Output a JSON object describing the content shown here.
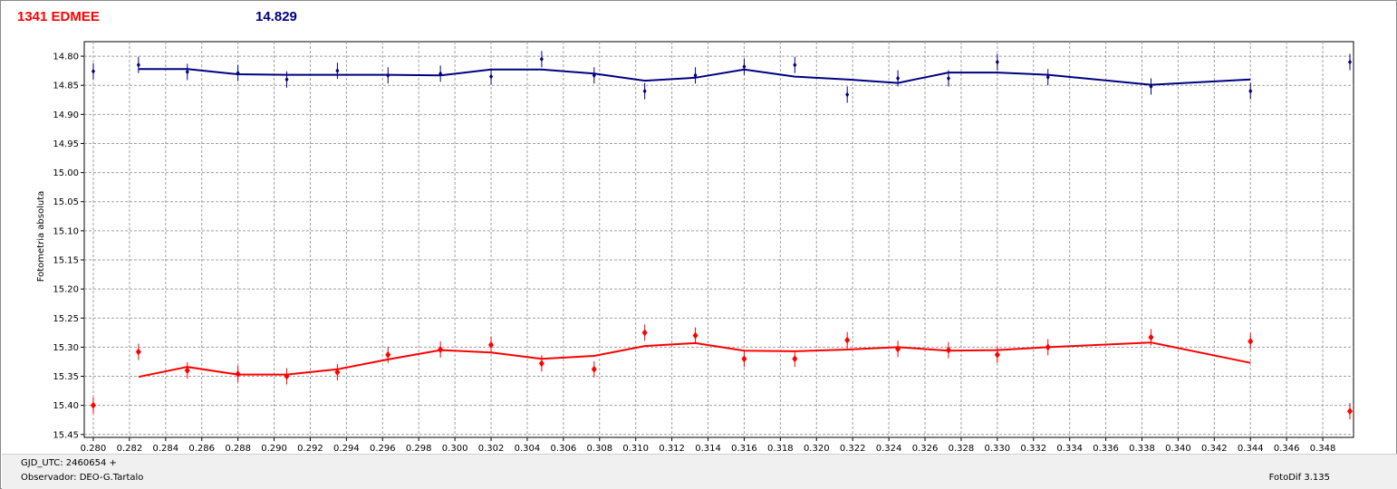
{
  "header": {
    "object_name": "1341 EDMEE",
    "mean_magnitude": "14.829"
  },
  "footer": {
    "gjd_label": "GJD_UTC: 2460654 +",
    "observer_label": "Observador: DEO-G.Tartalo",
    "software_label": "FotoDif 3.135"
  },
  "colors": {
    "target": "#ff0000",
    "comparison": "#000080",
    "grid": "#a0a0a0"
  },
  "chart_data": {
    "type": "scatter",
    "ylabel": "Fotometria absoluta",
    "xlabel": "",
    "xlim": [
      0.2795,
      0.3497
    ],
    "ylim": [
      14.775,
      15.455
    ],
    "y_inverted": true,
    "grid": true,
    "x_ticks": [
      "0.280",
      "0.282",
      "0.284",
      "0.286",
      "0.288",
      "0.290",
      "0.292",
      "0.294",
      "0.296",
      "0.298",
      "0.300",
      "0.302",
      "0.304",
      "0.306",
      "0.308",
      "0.310",
      "0.312",
      "0.314",
      "0.316",
      "0.318",
      "0.320",
      "0.322",
      "0.324",
      "0.326",
      "0.328",
      "0.330",
      "0.332",
      "0.334",
      "0.336",
      "0.338",
      "0.340",
      "0.342",
      "0.344",
      "0.346",
      "0.348"
    ],
    "y_ticks": [
      "14.80",
      "14.85",
      "14.90",
      "14.95",
      "15.00",
      "15.05",
      "15.10",
      "15.15",
      "15.20",
      "15.25",
      "15.30",
      "15.35",
      "15.40",
      "15.45"
    ],
    "series": [
      {
        "color": "#000080",
        "points": [
          {
            "x": 0.28,
            "y": 14.826
          },
          {
            "x": 0.2825,
            "y": 14.815
          },
          {
            "x": 0.2852,
            "y": 14.827
          },
          {
            "x": 0.288,
            "y": 14.829
          },
          {
            "x": 0.2907,
            "y": 14.84
          },
          {
            "x": 0.2935,
            "y": 14.825
          },
          {
            "x": 0.2963,
            "y": 14.833
          },
          {
            "x": 0.2992,
            "y": 14.83
          },
          {
            "x": 0.302,
            "y": 14.835
          },
          {
            "x": 0.3048,
            "y": 14.805
          },
          {
            "x": 0.3077,
            "y": 14.833
          },
          {
            "x": 0.3105,
            "y": 14.86
          },
          {
            "x": 0.3133,
            "y": 14.833
          },
          {
            "x": 0.316,
            "y": 14.818
          },
          {
            "x": 0.3188,
            "y": 14.815
          },
          {
            "x": 0.3217,
            "y": 14.866
          },
          {
            "x": 0.3245,
            "y": 14.838
          },
          {
            "x": 0.3273,
            "y": 14.838
          },
          {
            "x": 0.33,
            "y": 14.81
          },
          {
            "x": 0.3328,
            "y": 14.836
          },
          {
            "x": 0.3385,
            "y": 14.852
          },
          {
            "x": 0.344,
            "y": 14.86
          },
          {
            "x": 0.3495,
            "y": 14.81
          }
        ],
        "trend": [
          {
            "x": 0.2825,
            "y": 14.822
          },
          {
            "x": 0.2852,
            "y": 14.822
          },
          {
            "x": 0.288,
            "y": 14.831
          },
          {
            "x": 0.2907,
            "y": 14.832
          },
          {
            "x": 0.2935,
            "y": 14.832
          },
          {
            "x": 0.2963,
            "y": 14.832
          },
          {
            "x": 0.2992,
            "y": 14.833
          },
          {
            "x": 0.302,
            "y": 14.823
          },
          {
            "x": 0.3048,
            "y": 14.823
          },
          {
            "x": 0.3077,
            "y": 14.83
          },
          {
            "x": 0.3105,
            "y": 14.842
          },
          {
            "x": 0.3133,
            "y": 14.837
          },
          {
            "x": 0.316,
            "y": 14.823
          },
          {
            "x": 0.3188,
            "y": 14.835
          },
          {
            "x": 0.3217,
            "y": 14.84
          },
          {
            "x": 0.3245,
            "y": 14.846
          },
          {
            "x": 0.3273,
            "y": 14.828
          },
          {
            "x": 0.33,
            "y": 14.828
          },
          {
            "x": 0.3328,
            "y": 14.832
          },
          {
            "x": 0.3385,
            "y": 14.849
          },
          {
            "x": 0.344,
            "y": 14.84
          }
        ]
      },
      {
        "color": "#ff0000",
        "points": [
          {
            "x": 0.28,
            "y": 15.4
          },
          {
            "x": 0.2825,
            "y": 15.308
          },
          {
            "x": 0.2852,
            "y": 15.34
          },
          {
            "x": 0.288,
            "y": 15.346
          },
          {
            "x": 0.2907,
            "y": 15.35
          },
          {
            "x": 0.2935,
            "y": 15.343
          },
          {
            "x": 0.2963,
            "y": 15.313
          },
          {
            "x": 0.2992,
            "y": 15.304
          },
          {
            "x": 0.302,
            "y": 15.296
          },
          {
            "x": 0.3048,
            "y": 15.328
          },
          {
            "x": 0.3077,
            "y": 15.338
          },
          {
            "x": 0.3105,
            "y": 15.275
          },
          {
            "x": 0.3133,
            "y": 15.28
          },
          {
            "x": 0.316,
            "y": 15.32
          },
          {
            "x": 0.3188,
            "y": 15.32
          },
          {
            "x": 0.3217,
            "y": 15.288
          },
          {
            "x": 0.3245,
            "y": 15.303
          },
          {
            "x": 0.3273,
            "y": 15.305
          },
          {
            "x": 0.33,
            "y": 15.313
          },
          {
            "x": 0.3328,
            "y": 15.3
          },
          {
            "x": 0.3385,
            "y": 15.283
          },
          {
            "x": 0.344,
            "y": 15.29
          },
          {
            "x": 0.3495,
            "y": 15.41
          }
        ],
        "trend": [
          {
            "x": 0.2825,
            "y": 15.351
          },
          {
            "x": 0.2852,
            "y": 15.334
          },
          {
            "x": 0.288,
            "y": 15.347
          },
          {
            "x": 0.2907,
            "y": 15.347
          },
          {
            "x": 0.2935,
            "y": 15.338
          },
          {
            "x": 0.2963,
            "y": 15.321
          },
          {
            "x": 0.2992,
            "y": 15.305
          },
          {
            "x": 0.302,
            "y": 15.309
          },
          {
            "x": 0.3048,
            "y": 15.32
          },
          {
            "x": 0.3077,
            "y": 15.315
          },
          {
            "x": 0.3105,
            "y": 15.298
          },
          {
            "x": 0.3133,
            "y": 15.293
          },
          {
            "x": 0.316,
            "y": 15.306
          },
          {
            "x": 0.3188,
            "y": 15.307
          },
          {
            "x": 0.3217,
            "y": 15.304
          },
          {
            "x": 0.3245,
            "y": 15.3
          },
          {
            "x": 0.3273,
            "y": 15.306
          },
          {
            "x": 0.33,
            "y": 15.305
          },
          {
            "x": 0.3328,
            "y": 15.3
          },
          {
            "x": 0.3385,
            "y": 15.292
          },
          {
            "x": 0.344,
            "y": 15.327
          }
        ]
      }
    ]
  }
}
